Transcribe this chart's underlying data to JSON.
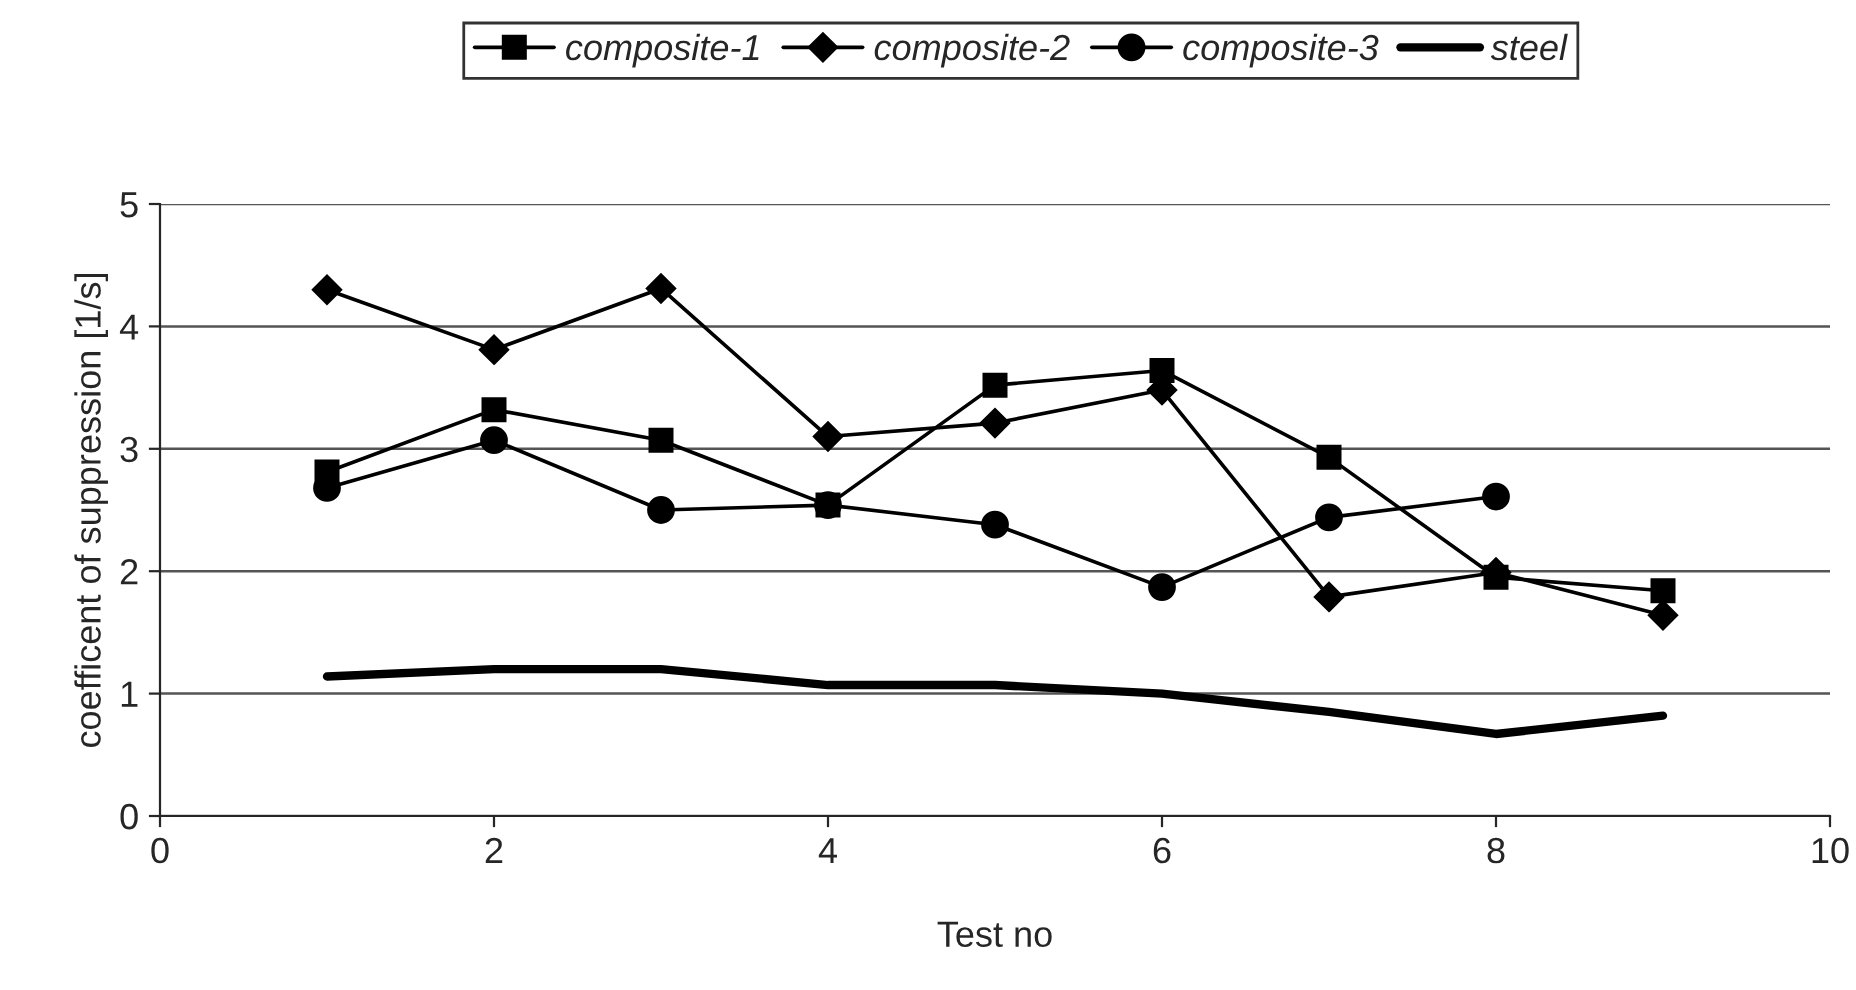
{
  "chart_data": {
    "type": "line",
    "xlabel": "Test no",
    "ylabel": "coefficent of suppression [1/s]",
    "x": [
      1,
      2,
      3,
      4,
      5,
      6,
      7,
      8,
      9
    ],
    "series": [
      {
        "name": "composite-1",
        "color": "#000000",
        "marker": "square",
        "values": [
          2.81,
          3.32,
          3.07,
          2.54,
          3.52,
          3.64,
          2.93,
          1.95,
          1.84
        ]
      },
      {
        "name": "composite-2",
        "color": "#000000",
        "marker": "diamond",
        "values": [
          4.3,
          3.81,
          4.31,
          3.1,
          3.21,
          3.48,
          1.79,
          1.99,
          1.64
        ]
      },
      {
        "name": "composite-3",
        "color": "#000000",
        "marker": "circle",
        "values": [
          2.68,
          3.07,
          2.5,
          2.54,
          2.38,
          1.87,
          2.44,
          2.61,
          null
        ]
      },
      {
        "name": "steel",
        "color": "#000000",
        "marker": "none",
        "values": [
          1.14,
          1.2,
          1.2,
          1.07,
          1.07,
          1.0,
          0.85,
          0.67,
          0.82
        ]
      }
    ],
    "xlim": [
      0,
      10
    ],
    "xticks": [
      0,
      2,
      4,
      6,
      8,
      10
    ],
    "ylim": [
      0,
      5
    ],
    "yticks": [
      0,
      1,
      2,
      3,
      4,
      5
    ],
    "grid": "y",
    "legend": "top",
    "line_style": "solid"
  }
}
